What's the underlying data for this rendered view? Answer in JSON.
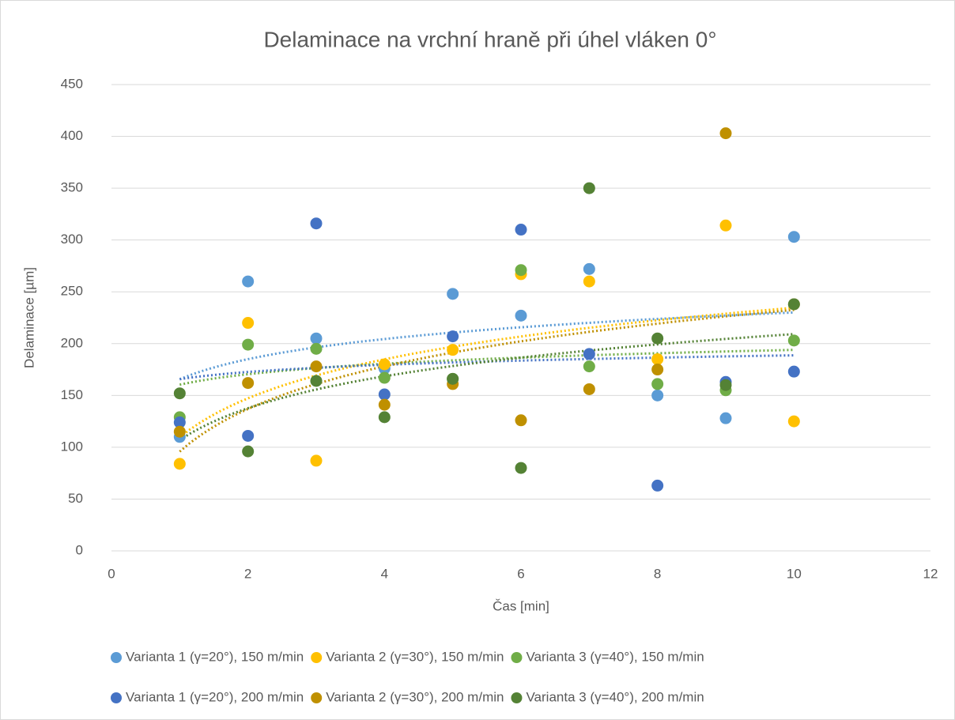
{
  "chart_data": {
    "type": "scatter",
    "title": "Delaminace na vrchní hraně při úhel vláken 0°",
    "x_label": "Čas [min]",
    "y_label": "Delaminace [µm]",
    "x": [
      1,
      2,
      3,
      4,
      5,
      6,
      7,
      8,
      9,
      10
    ],
    "series": [
      {
        "name": "Varianta 1 (γ=20°), 150 m/min",
        "color": "#5b9bd5",
        "values": [
          110,
          260,
          205,
          176,
          248,
          227,
          272,
          150,
          128,
          303
        ]
      },
      {
        "name": "Varianta 2 (γ=30°), 150 m/min",
        "color": "#ffc000",
        "values": [
          84,
          220,
          87,
          180,
          194,
          267,
          260,
          185,
          314,
          125
        ]
      },
      {
        "name": "Varianta 3 (γ=40°), 150 m/min",
        "color": "#70ad47",
        "values": [
          129,
          199,
          195,
          167,
          166,
          271,
          178,
          161,
          155,
          203
        ]
      },
      {
        "name": "Varianta 1 (γ=20°), 200 m/min",
        "color": "#4472c4",
        "values": [
          124,
          111,
          316,
          151,
          207,
          310,
          190,
          63,
          163,
          173
        ]
      },
      {
        "name": "Varianta 2 (γ=30°), 200 m/min",
        "color": "#bf9000",
        "values": [
          115,
          162,
          178,
          141,
          161,
          126,
          156,
          175,
          403,
          238
        ]
      },
      {
        "name": "Varianta 3 (γ=40°), 200 m/min",
        "color": "#548235",
        "values": [
          152,
          96,
          164,
          129,
          166,
          80,
          350,
          205,
          160,
          238
        ]
      }
    ],
    "xlim": [
      0,
      12
    ],
    "xticks": [
      0,
      2,
      4,
      6,
      8,
      10,
      12
    ],
    "ylim": [
      0,
      450
    ],
    "yticks": [
      0,
      50,
      100,
      150,
      200,
      250,
      300,
      350,
      400,
      450
    ],
    "grid": true,
    "trendline": "logarithmic",
    "legend": "bottom"
  }
}
